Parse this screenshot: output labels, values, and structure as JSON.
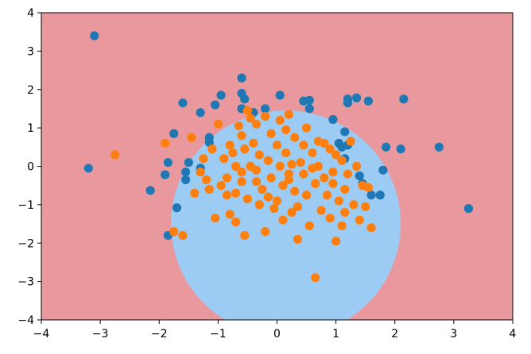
{
  "chart_data": {
    "type": "scatter",
    "title": "",
    "xlabel": "",
    "ylabel": "",
    "xlim": [
      -4,
      4
    ],
    "ylim": [
      -4,
      4
    ],
    "xticks": [
      -4,
      -3,
      -2,
      -1,
      0,
      1,
      2,
      3,
      4
    ],
    "yticks": [
      -4,
      -3,
      -2,
      -1,
      0,
      1,
      2,
      3,
      4
    ],
    "tick_labels_x": [
      "−4",
      "−3",
      "−2",
      "−1",
      "0",
      "1",
      "2",
      "3",
      "4"
    ],
    "tick_labels_y": [
      "−4",
      "−3",
      "−2",
      "−1",
      "0",
      "1",
      "2",
      "3",
      "4"
    ],
    "grid": false,
    "legend": "none",
    "decision_regions": {
      "outer_class_color": "#e9999d",
      "inner_class_color": "#9ccbf4",
      "inner_region": {
        "shape": "ellipse",
        "cx": 0.15,
        "cy": -1.5,
        "rx": 1.95,
        "ry": 2.95
      }
    },
    "series": [
      {
        "color": "#1f77b4",
        "points": [
          [
            -3.1,
            3.4
          ],
          [
            -3.2,
            -0.05
          ],
          [
            -2.15,
            -0.63
          ],
          [
            -1.9,
            -0.22
          ],
          [
            -1.85,
            0.1
          ],
          [
            -1.75,
            0.85
          ],
          [
            -1.7,
            -1.08
          ],
          [
            -1.6,
            1.65
          ],
          [
            -1.55,
            -0.15
          ],
          [
            -1.55,
            -0.35
          ],
          [
            -1.5,
            0.1
          ],
          [
            -1.3,
            1.4
          ],
          [
            -1.3,
            -0.05
          ],
          [
            -1.15,
            0.75
          ],
          [
            -1.15,
            0.62
          ],
          [
            -1.05,
            1.6
          ],
          [
            -0.95,
            1.85
          ],
          [
            -1.85,
            -1.8
          ],
          [
            -0.6,
            1.5
          ],
          [
            -0.6,
            2.3
          ],
          [
            -0.6,
            1.9
          ],
          [
            -0.55,
            1.75
          ],
          [
            -0.4,
            1.4
          ],
          [
            -0.2,
            1.5
          ],
          [
            0.05,
            1.85
          ],
          [
            0.45,
            1.7
          ],
          [
            0.55,
            1.72
          ],
          [
            0.55,
            1.5
          ],
          [
            0.95,
            1.22
          ],
          [
            1.05,
            0.6
          ],
          [
            1.1,
            0.5
          ],
          [
            1.15,
            0.2
          ],
          [
            1.15,
            0.9
          ],
          [
            1.2,
            1.75
          ],
          [
            1.2,
            1.65
          ],
          [
            1.35,
            1.78
          ],
          [
            1.55,
            1.7
          ],
          [
            1.4,
            -0.25
          ],
          [
            1.45,
            -0.45
          ],
          [
            1.6,
            -0.75
          ],
          [
            1.75,
            -0.75
          ],
          [
            1.8,
            -0.1
          ],
          [
            1.85,
            0.5
          ],
          [
            2.1,
            0.45
          ],
          [
            2.15,
            1.75
          ],
          [
            2.75,
            0.5
          ],
          [
            3.25,
            -1.1
          ],
          [
            1.2,
            0.55
          ]
        ]
      },
      {
        "color": "#ff7f0e",
        "points": [
          [
            -2.75,
            0.3
          ],
          [
            -1.9,
            0.6
          ],
          [
            -1.75,
            -1.7
          ],
          [
            -1.6,
            -1.8
          ],
          [
            -1.45,
            0.75
          ],
          [
            -1.4,
            -0.7
          ],
          [
            -1.3,
            -0.15
          ],
          [
            -1.25,
            0.2
          ],
          [
            -1.15,
            -0.6
          ],
          [
            -1.1,
            0.45
          ],
          [
            -1.05,
            -1.35
          ],
          [
            -1.0,
            1.1
          ],
          [
            -0.95,
            -0.5
          ],
          [
            -0.9,
            0.2
          ],
          [
            -0.85,
            -0.3
          ],
          [
            -0.85,
            -0.75
          ],
          [
            -0.8,
            0.55
          ],
          [
            -0.8,
            -1.25
          ],
          [
            -0.75,
            0.35
          ],
          [
            -0.7,
            -0.7
          ],
          [
            -0.7,
            0.0
          ],
          [
            -0.65,
            1.05
          ],
          [
            -0.6,
            -0.4
          ],
          [
            -0.6,
            0.8
          ],
          [
            -0.55,
            -1.8
          ],
          [
            -0.55,
            0.45
          ],
          [
            -0.5,
            1.45
          ],
          [
            -0.5,
            -0.85
          ],
          [
            -0.45,
            0.0
          ],
          [
            -0.4,
            0.6
          ],
          [
            -0.35,
            -0.4
          ],
          [
            -0.35,
            1.1
          ],
          [
            -0.3,
            -1.0
          ],
          [
            -0.3,
            0.3
          ],
          [
            -0.25,
            -0.6
          ],
          [
            -0.2,
            1.3
          ],
          [
            -0.2,
            -1.7
          ],
          [
            -0.15,
            0.15
          ],
          [
            -0.1,
            0.85
          ],
          [
            -0.1,
            -0.3
          ],
          [
            -0.05,
            -1.1
          ],
          [
            0.0,
            0.55
          ],
          [
            0.0,
            -0.9
          ],
          [
            0.05,
            1.2
          ],
          [
            0.05,
            0.0
          ],
          [
            0.1,
            -0.5
          ],
          [
            0.1,
            -1.4
          ],
          [
            0.15,
            0.35
          ],
          [
            0.2,
            1.35
          ],
          [
            0.2,
            -0.2
          ],
          [
            0.25,
            -1.2
          ],
          [
            0.3,
            0.75
          ],
          [
            0.3,
            -0.65
          ],
          [
            0.35,
            -1.9
          ],
          [
            0.4,
            0.1
          ],
          [
            0.45,
            -0.2
          ],
          [
            0.5,
            1.0
          ],
          [
            0.5,
            -0.75
          ],
          [
            0.55,
            -1.55
          ],
          [
            0.6,
            0.35
          ],
          [
            0.65,
            -0.45
          ],
          [
            0.65,
            -2.9
          ],
          [
            0.7,
            0.0
          ],
          [
            0.75,
            -1.15
          ],
          [
            0.8,
            0.6
          ],
          [
            0.8,
            -0.3
          ],
          [
            0.85,
            -0.75
          ],
          [
            0.9,
            -1.35
          ],
          [
            0.95,
            -0.15
          ],
          [
            1.0,
            0.3
          ],
          [
            1.05,
            -0.9
          ],
          [
            1.1,
            0.15
          ],
          [
            1.1,
            -1.55
          ],
          [
            1.15,
            -0.6
          ],
          [
            1.2,
            -0.2
          ],
          [
            1.25,
            0.65
          ],
          [
            1.3,
            -1.0
          ],
          [
            1.35,
            0.0
          ],
          [
            1.4,
            -1.4
          ],
          [
            1.45,
            -0.5
          ],
          [
            1.5,
            -1.05
          ],
          [
            1.55,
            -0.55
          ],
          [
            1.6,
            -1.6
          ],
          [
            -0.35,
            -0.1
          ],
          [
            0.25,
            0.05
          ],
          [
            0.9,
            0.45
          ],
          [
            -0.15,
            -0.8
          ],
          [
            0.45,
            0.55
          ],
          [
            1.0,
            -1.95
          ],
          [
            -0.7,
            -1.45
          ],
          [
            0.15,
            0.95
          ],
          [
            0.6,
            -0.05
          ],
          [
            -0.45,
            1.25
          ],
          [
            0.35,
            -1.05
          ],
          [
            0.95,
            -0.45
          ],
          [
            -1.2,
            -0.35
          ],
          [
            0.2,
            -0.35
          ],
          [
            0.7,
            0.65
          ],
          [
            -0.6,
            -0.15
          ],
          [
            1.15,
            -1.2
          ]
        ]
      }
    ]
  }
}
